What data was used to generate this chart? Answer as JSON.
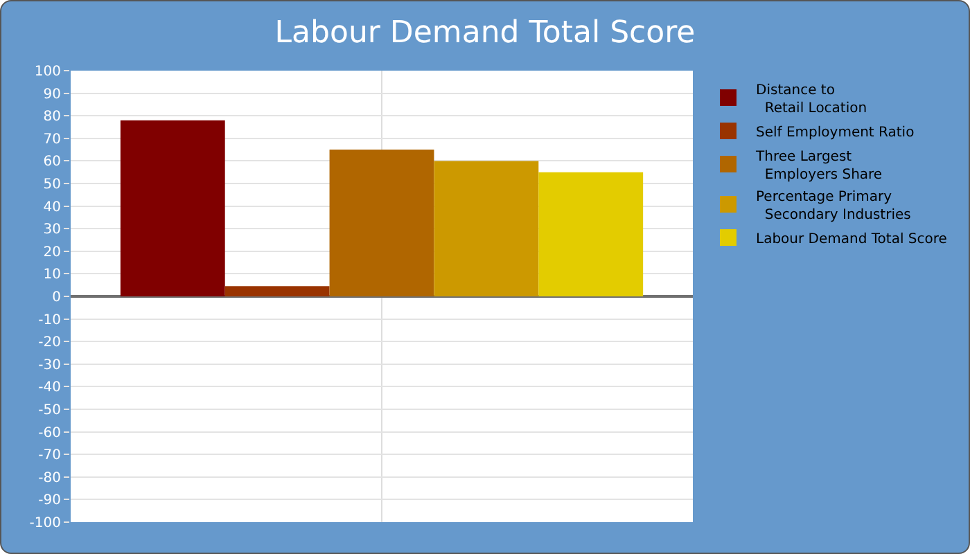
{
  "chart_data": {
    "type": "bar",
    "title": "Labour Demand Total Score",
    "categories": [
      null
    ],
    "series": [
      {
        "name": "Distance to\nRetail Location",
        "color": "#800000",
        "values": [
          78
        ]
      },
      {
        "name": "Self Employment Ratio",
        "color": "#993300",
        "values": [
          4.5
        ]
      },
      {
        "name": "Three Largest\nEmployers Share",
        "color": "#b06600",
        "values": [
          65
        ]
      },
      {
        "name": "Percentage Primary\nSecondary Industries",
        "color": "#cc9900",
        "values": [
          60
        ]
      },
      {
        "name": "Labour Demand Total Score",
        "color": "#e3cc00",
        "values": [
          55
        ]
      }
    ],
    "ylim": [
      -100,
      100
    ],
    "yticks": [
      -100,
      -90,
      -80,
      -70,
      -60,
      -50,
      -40,
      -30,
      -20,
      -10,
      0,
      10,
      20,
      30,
      40,
      50,
      60,
      70,
      80,
      90,
      100
    ],
    "grid": true,
    "legend": "right",
    "tick_labels": "y"
  }
}
